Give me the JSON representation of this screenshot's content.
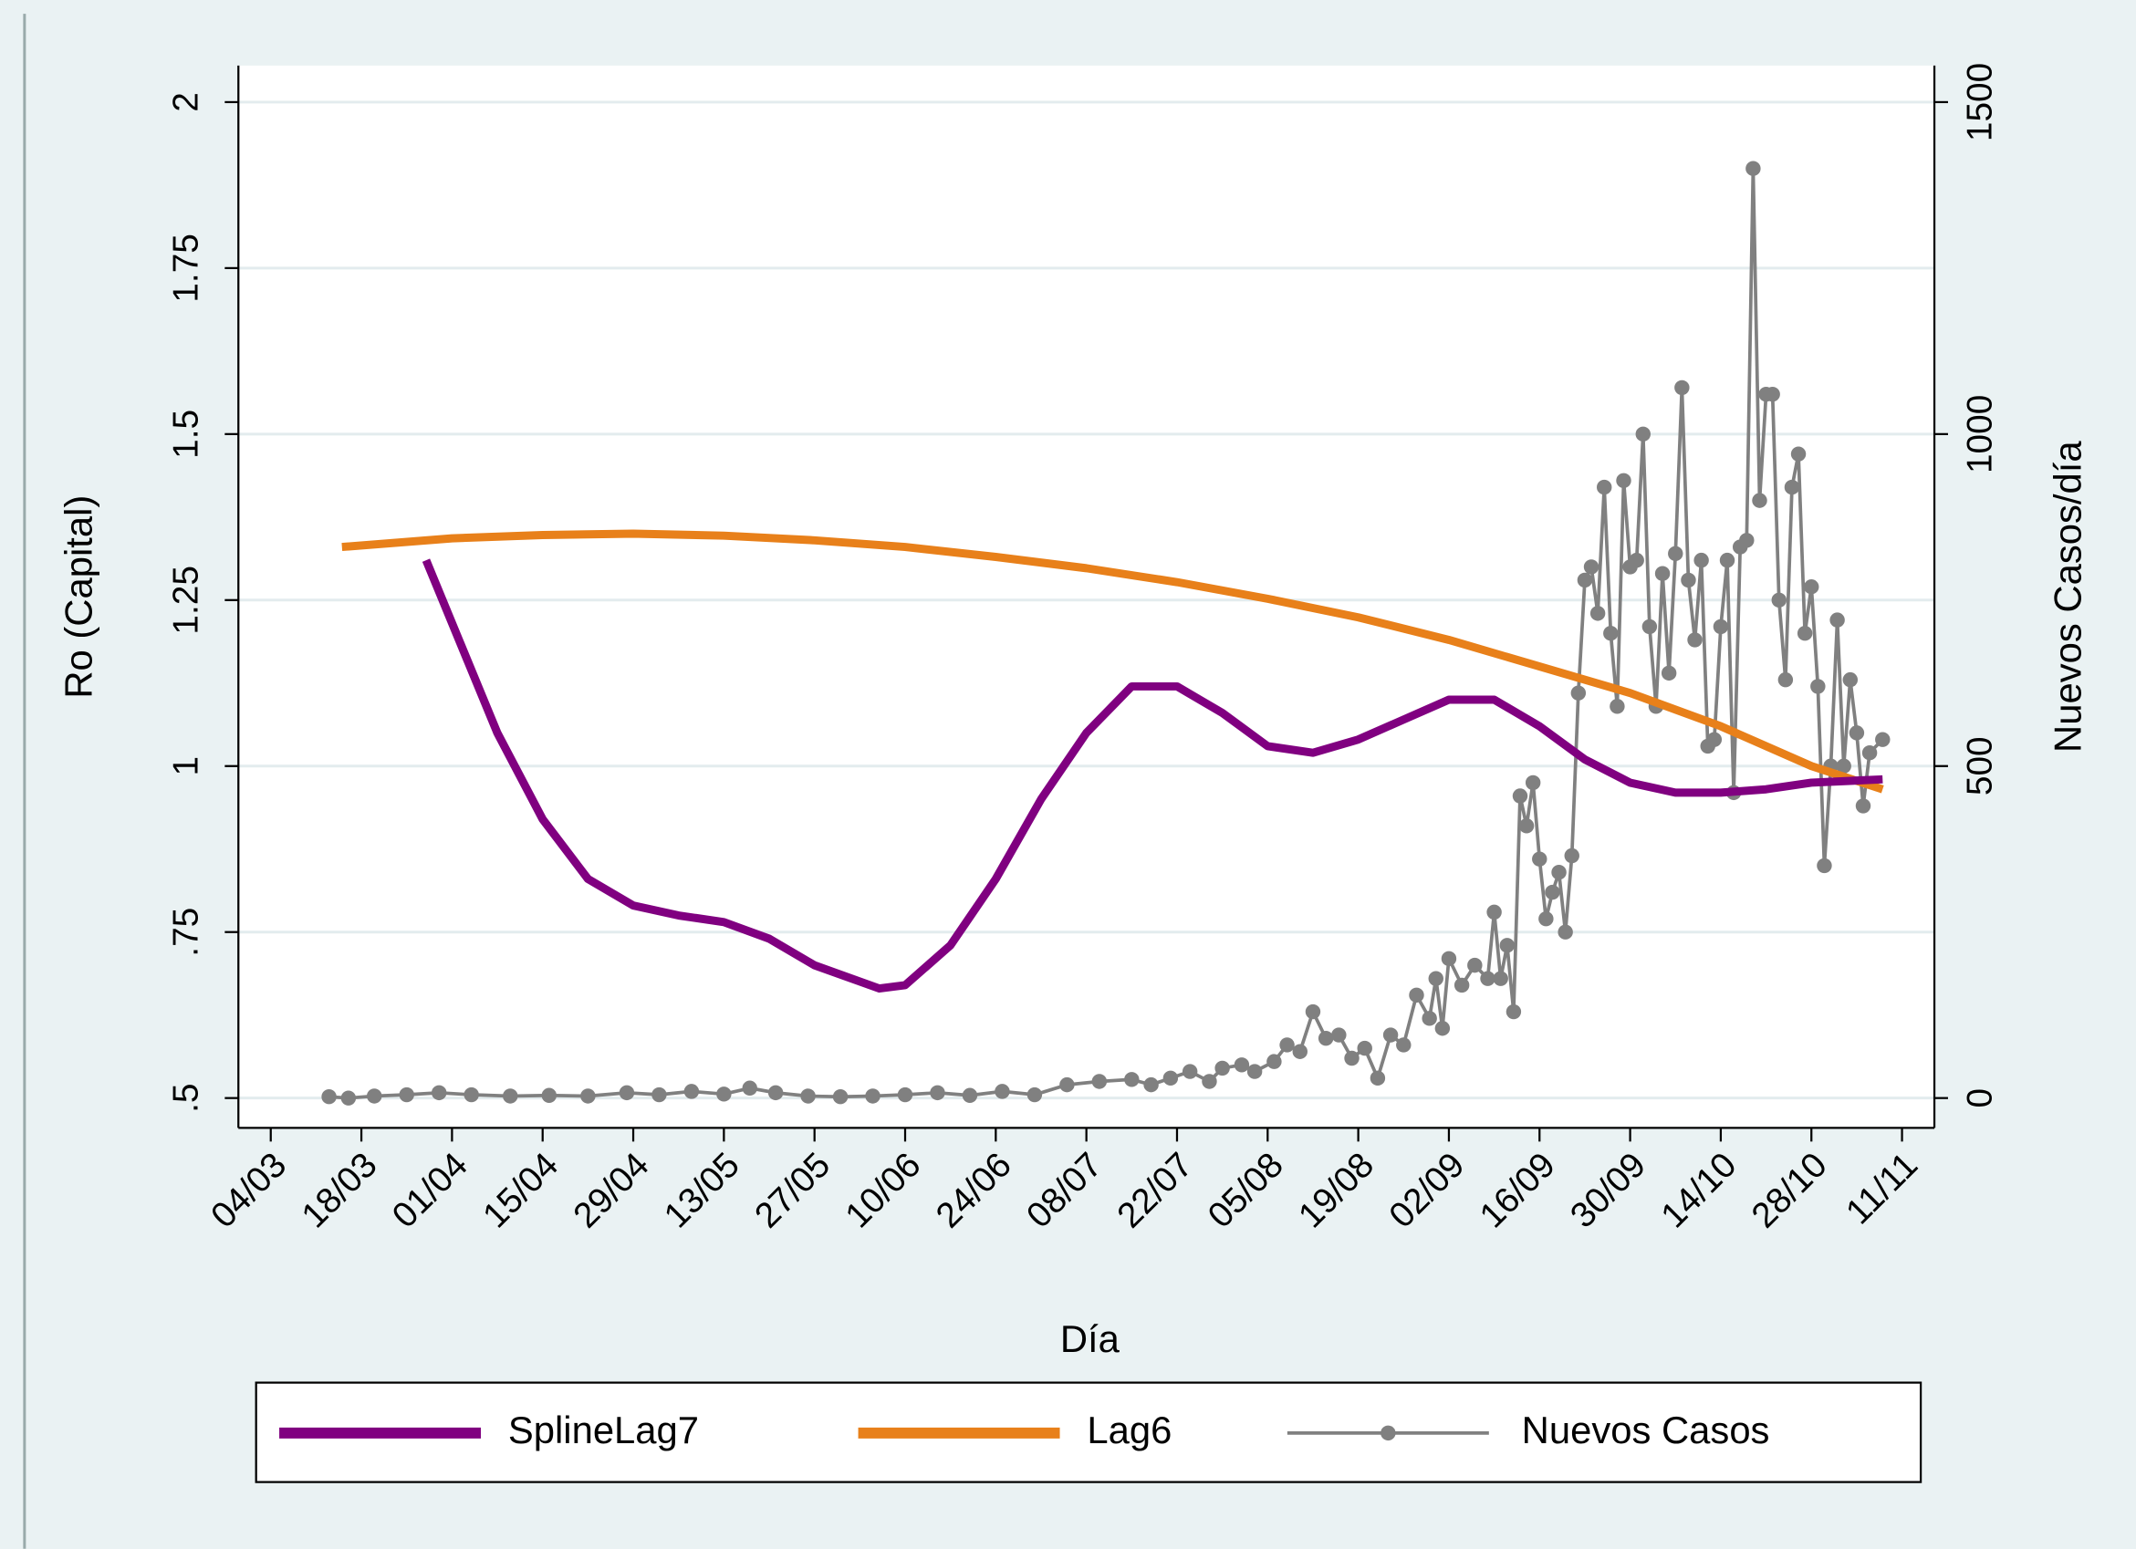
{
  "chart_data": {
    "type": "line",
    "x_label": "Día",
    "y_label": "Ro (Capital)",
    "y2_label": "Nuevos Casos/día",
    "xlim": [
      "28/02",
      "16/11"
    ],
    "xticks": [
      "04/03",
      "18/03",
      "01/04",
      "15/04",
      "29/04",
      "13/05",
      "27/05",
      "10/06",
      "24/06",
      "08/07",
      "22/07",
      "05/08",
      "19/08",
      "02/09",
      "16/09",
      "30/09",
      "14/10",
      "28/10",
      "11/11"
    ],
    "ylim": [
      0.455,
      2.055
    ],
    "yticks": [
      {
        "value": 0.5,
        "label": ".5"
      },
      {
        "value": 0.75,
        "label": ".75"
      },
      1,
      1.25,
      1.5,
      1.75,
      2
    ],
    "y2lim": [
      -45,
      1555
    ],
    "y2ticks": [
      0,
      500,
      1000,
      1500
    ],
    "grid": true,
    "series": [
      {
        "name": "SplineLag7",
        "color": "#800080",
        "axis": "y",
        "x": [
          "28/03",
          "08/04",
          "15/04",
          "22/04",
          "29/04",
          "06/05",
          "13/05",
          "20/05",
          "27/05",
          "06/06",
          "10/06",
          "17/06",
          "24/06",
          "01/07",
          "08/07",
          "15/07",
          "22/07",
          "29/07",
          "05/08",
          "12/08",
          "19/08",
          "26/08",
          "02/09",
          "09/09",
          "16/09",
          "23/09",
          "30/09",
          "07/10",
          "14/10",
          "21/10",
          "28/10",
          "08/11"
        ],
        "values": [
          1.31,
          1.05,
          0.92,
          0.83,
          0.79,
          0.775,
          0.765,
          0.74,
          0.7,
          0.665,
          0.67,
          0.73,
          0.83,
          0.95,
          1.05,
          1.12,
          1.12,
          1.08,
          1.03,
          1.02,
          1.04,
          1.07,
          1.1,
          1.1,
          1.06,
          1.01,
          0.975,
          0.96,
          0.96,
          0.965,
          0.975,
          0.98
        ]
      },
      {
        "name": "Lag6",
        "color": "#e8801a",
        "axis": "y",
        "x": [
          "15/03",
          "01/04",
          "15/04",
          "29/04",
          "13/05",
          "27/05",
          "10/06",
          "24/06",
          "08/07",
          "22/07",
          "05/08",
          "19/08",
          "02/09",
          "16/09",
          "30/09",
          "14/10",
          "28/10",
          "08/11"
        ],
        "values": [
          1.33,
          1.343,
          1.348,
          1.35,
          1.347,
          1.34,
          1.33,
          1.315,
          1.298,
          1.277,
          1.252,
          1.224,
          1.19,
          1.15,
          1.11,
          1.06,
          1.0,
          0.965
        ]
      },
      {
        "name": "Nuevos Casos",
        "color": "#808080",
        "axis": "y2",
        "x": [
          "13/03",
          "16/03",
          "20/03",
          "25/03",
          "30/03",
          "04/04",
          "10/04",
          "16/04",
          "22/04",
          "28/04",
          "03/05",
          "08/05",
          "13/05",
          "17/05",
          "21/05",
          "26/05",
          "31/05",
          "05/06",
          "10/06",
          "15/06",
          "20/06",
          "25/06",
          "30/06",
          "05/07",
          "10/07",
          "15/07",
          "18/07",
          "21/07",
          "24/07",
          "27/07",
          "29/07",
          "01/08",
          "03/08",
          "06/08",
          "08/08",
          "10/08",
          "12/08",
          "14/08",
          "16/08",
          "18/08",
          "20/08",
          "22/08",
          "24/08",
          "26/08",
          "28/08",
          "30/08",
          "31/08",
          "01/09",
          "02/09",
          "04/09",
          "06/09",
          "08/09",
          "09/09",
          "10/09",
          "11/09",
          "12/09",
          "13/09",
          "14/09",
          "15/09",
          "16/09",
          "17/09",
          "18/09",
          "19/09",
          "20/09",
          "21/09",
          "22/09",
          "23/09",
          "24/09",
          "25/09",
          "26/09",
          "27/09",
          "28/09",
          "29/09",
          "30/09",
          "01/10",
          "02/10",
          "03/10",
          "04/10",
          "05/10",
          "06/10",
          "07/10",
          "08/10",
          "09/10",
          "10/10",
          "11/10",
          "12/10",
          "13/10",
          "14/10",
          "15/10",
          "16/10",
          "17/10",
          "18/10",
          "19/10",
          "20/10",
          "21/10",
          "22/10",
          "23/10",
          "24/10",
          "25/10",
          "26/10",
          "27/10",
          "28/10",
          "29/10",
          "30/10",
          "31/10",
          "01/11",
          "02/11",
          "03/11",
          "04/11",
          "05/11",
          "06/11",
          "08/11"
        ],
        "values": [
          2,
          0,
          3,
          5,
          8,
          5,
          3,
          4,
          3,
          8,
          5,
          10,
          6,
          15,
          8,
          3,
          2,
          3,
          5,
          8,
          4,
          10,
          5,
          20,
          25,
          28,
          20,
          30,
          40,
          25,
          45,
          50,
          40,
          55,
          80,
          70,
          130,
          90,
          95,
          60,
          75,
          30,
          95,
          80,
          155,
          120,
          180,
          105,
          210,
          170,
          200,
          180,
          280,
          180,
          230,
          130,
          455,
          410,
          475,
          360,
          270,
          310,
          340,
          250,
          365,
          610,
          780,
          800,
          730,
          920,
          700,
          590,
          930,
          800,
          810,
          1000,
          710,
          590,
          790,
          640,
          820,
          1070,
          780,
          690,
          810,
          530,
          540,
          710,
          810,
          460,
          830,
          840,
          1400,
          900,
          1060,
          1060,
          750,
          630,
          920,
          970,
          700,
          770,
          620,
          350,
          500,
          720,
          500,
          630,
          550,
          440,
          520,
          540
        ]
      }
    ]
  }
}
